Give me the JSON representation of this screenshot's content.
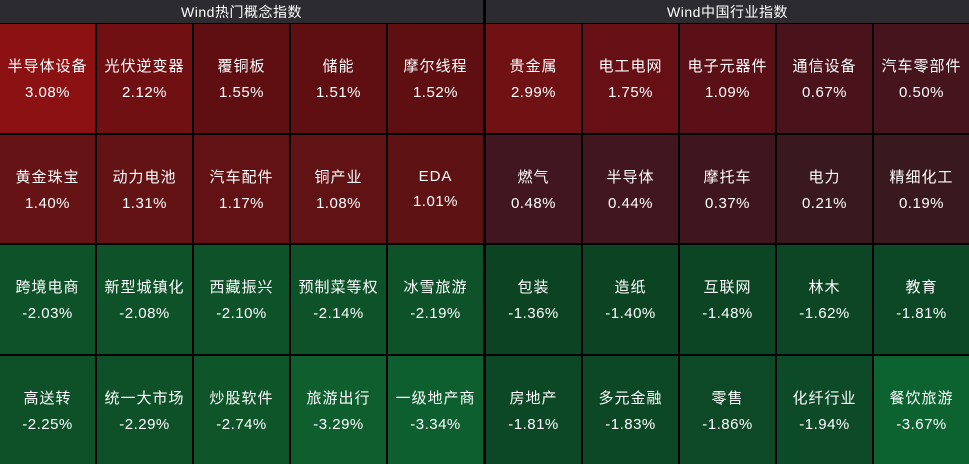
{
  "colors": {
    "background": "#000000",
    "header_bg": "#2b2b30",
    "header_text": "#ffffff",
    "cell_text": "#ffffff",
    "positive_base": "#8c1113",
    "negative_base": "#0c6330"
  },
  "panels": [
    {
      "title": "Wind热门概念指数",
      "rows": [
        [
          {
            "name": "半导体设备",
            "value": "3.08%",
            "color": "#8c1113"
          },
          {
            "name": "光伏逆变器",
            "value": "2.12%",
            "color": "#701013"
          },
          {
            "name": "覆铜板",
            "value": "1.55%",
            "color": "#5f0e11"
          },
          {
            "name": "储能",
            "value": "1.51%",
            "color": "#5f0e11"
          },
          {
            "name": "摩尔线程",
            "value": "1.52%",
            "color": "#5f0e11"
          }
        ],
        [
          {
            "name": "黄金珠宝",
            "value": "1.40%",
            "color": "#651315"
          },
          {
            "name": "动力电池",
            "value": "1.31%",
            "color": "#641315"
          },
          {
            "name": "汽车配件",
            "value": "1.17%",
            "color": "#621214"
          },
          {
            "name": "铜产业",
            "value": "1.08%",
            "color": "#601214"
          },
          {
            "name": "EDA",
            "value": "1.01%",
            "color": "#5f1214"
          }
        ],
        [
          {
            "name": "跨境电商",
            "value": "-2.03%",
            "color": "#0e5229"
          },
          {
            "name": "新型城镇化",
            "value": "-2.08%",
            "color": "#0e5229"
          },
          {
            "name": "西藏振兴",
            "value": "-2.10%",
            "color": "#0e5229"
          },
          {
            "name": "预制菜等权",
            "value": "-2.14%",
            "color": "#0e5229"
          },
          {
            "name": "冰雪旅游",
            "value": "-2.19%",
            "color": "#0e5229"
          }
        ],
        [
          {
            "name": "高送转",
            "value": "-2.25%",
            "color": "#0e5128"
          },
          {
            "name": "统一大市场",
            "value": "-2.29%",
            "color": "#0e5128"
          },
          {
            "name": "炒股软件",
            "value": "-2.74%",
            "color": "#0e5529"
          },
          {
            "name": "旅游出行",
            "value": "-3.29%",
            "color": "#0e5e2e"
          },
          {
            "name": "一级地产商",
            "value": "-3.34%",
            "color": "#0e5f2f"
          }
        ]
      ]
    },
    {
      "title": "Wind中国行业指数",
      "rows": [
        [
          {
            "name": "贵金属",
            "value": "2.99%",
            "color": "#701114"
          },
          {
            "name": "电工电网",
            "value": "1.75%",
            "color": "#661015"
          },
          {
            "name": "电子元器件",
            "value": "1.09%",
            "color": "#5a1016"
          },
          {
            "name": "通信设备",
            "value": "0.67%",
            "color": "#4a131b"
          },
          {
            "name": "汽车零部件",
            "value": "0.50%",
            "color": "#46141c"
          }
        ],
        [
          {
            "name": "燃气",
            "value": "0.48%",
            "color": "#421620"
          },
          {
            "name": "半导体",
            "value": "0.44%",
            "color": "#41161f"
          },
          {
            "name": "摩托车",
            "value": "0.37%",
            "color": "#3f161e"
          },
          {
            "name": "电力",
            "value": "0.21%",
            "color": "#3a191e"
          },
          {
            "name": "精细化工",
            "value": "0.19%",
            "color": "#39191e"
          }
        ],
        [
          {
            "name": "包装",
            "value": "-1.36%",
            "color": "#0c4423"
          },
          {
            "name": "造纸",
            "value": "-1.40%",
            "color": "#0c4423"
          },
          {
            "name": "互联网",
            "value": "-1.48%",
            "color": "#0c4524"
          },
          {
            "name": "林木",
            "value": "-1.62%",
            "color": "#0c4625"
          },
          {
            "name": "教育",
            "value": "-1.81%",
            "color": "#0d4826"
          }
        ],
        [
          {
            "name": "房地产",
            "value": "-1.81%",
            "color": "#0d4826"
          },
          {
            "name": "多元金融",
            "value": "-1.83%",
            "color": "#0d4826"
          },
          {
            "name": "零售",
            "value": "-1.86%",
            "color": "#0d4926"
          },
          {
            "name": "化纤行业",
            "value": "-1.94%",
            "color": "#0d4a27"
          },
          {
            "name": "餐饮旅游",
            "value": "-3.67%",
            "color": "#0c6330"
          }
        ]
      ]
    }
  ],
  "chart_data": [
    {
      "type": "heatmap",
      "title": "Wind热门概念指数",
      "grid": {
        "rows": 4,
        "cols": 5
      },
      "colormap": "positive=red, negative=green; brighter shade = larger absolute change",
      "cells": [
        {
          "label": "半导体设备",
          "pct": 3.08
        },
        {
          "label": "光伏逆变器",
          "pct": 2.12
        },
        {
          "label": "覆铜板",
          "pct": 1.55
        },
        {
          "label": "储能",
          "pct": 1.51
        },
        {
          "label": "摩尔线程",
          "pct": 1.52
        },
        {
          "label": "黄金珠宝",
          "pct": 1.4
        },
        {
          "label": "动力电池",
          "pct": 1.31
        },
        {
          "label": "汽车配件",
          "pct": 1.17
        },
        {
          "label": "铜产业",
          "pct": 1.08
        },
        {
          "label": "EDA",
          "pct": 1.01
        },
        {
          "label": "跨境电商",
          "pct": -2.03
        },
        {
          "label": "新型城镇化",
          "pct": -2.08
        },
        {
          "label": "西藏振兴",
          "pct": -2.1
        },
        {
          "label": "预制菜等权",
          "pct": -2.14
        },
        {
          "label": "冰雪旅游",
          "pct": -2.19
        },
        {
          "label": "高送转",
          "pct": -2.25
        },
        {
          "label": "统一大市场",
          "pct": -2.29
        },
        {
          "label": "炒股软件",
          "pct": -2.74
        },
        {
          "label": "旅游出行",
          "pct": -3.29
        },
        {
          "label": "一级地产商",
          "pct": -3.34
        }
      ]
    },
    {
      "type": "heatmap",
      "title": "Wind中国行业指数",
      "grid": {
        "rows": 4,
        "cols": 5
      },
      "colormap": "positive=red, negative=green; brighter shade = larger absolute change",
      "cells": [
        {
          "label": "贵金属",
          "pct": 2.99
        },
        {
          "label": "电工电网",
          "pct": 1.75
        },
        {
          "label": "电子元器件",
          "pct": 1.09
        },
        {
          "label": "通信设备",
          "pct": 0.67
        },
        {
          "label": "汽车零部件",
          "pct": 0.5
        },
        {
          "label": "燃气",
          "pct": 0.48
        },
        {
          "label": "半导体",
          "pct": 0.44
        },
        {
          "label": "摩托车",
          "pct": 0.37
        },
        {
          "label": "电力",
          "pct": 0.21
        },
        {
          "label": "精细化工",
          "pct": 0.19
        },
        {
          "label": "包装",
          "pct": -1.36
        },
        {
          "label": "造纸",
          "pct": -1.4
        },
        {
          "label": "互联网",
          "pct": -1.48
        },
        {
          "label": "林木",
          "pct": -1.62
        },
        {
          "label": "教育",
          "pct": -1.81
        },
        {
          "label": "房地产",
          "pct": -1.81
        },
        {
          "label": "多元金融",
          "pct": -1.83
        },
        {
          "label": "零售",
          "pct": -1.86
        },
        {
          "label": "化纤行业",
          "pct": -1.94
        },
        {
          "label": "餐饮旅游",
          "pct": -3.67
        }
      ]
    }
  ]
}
